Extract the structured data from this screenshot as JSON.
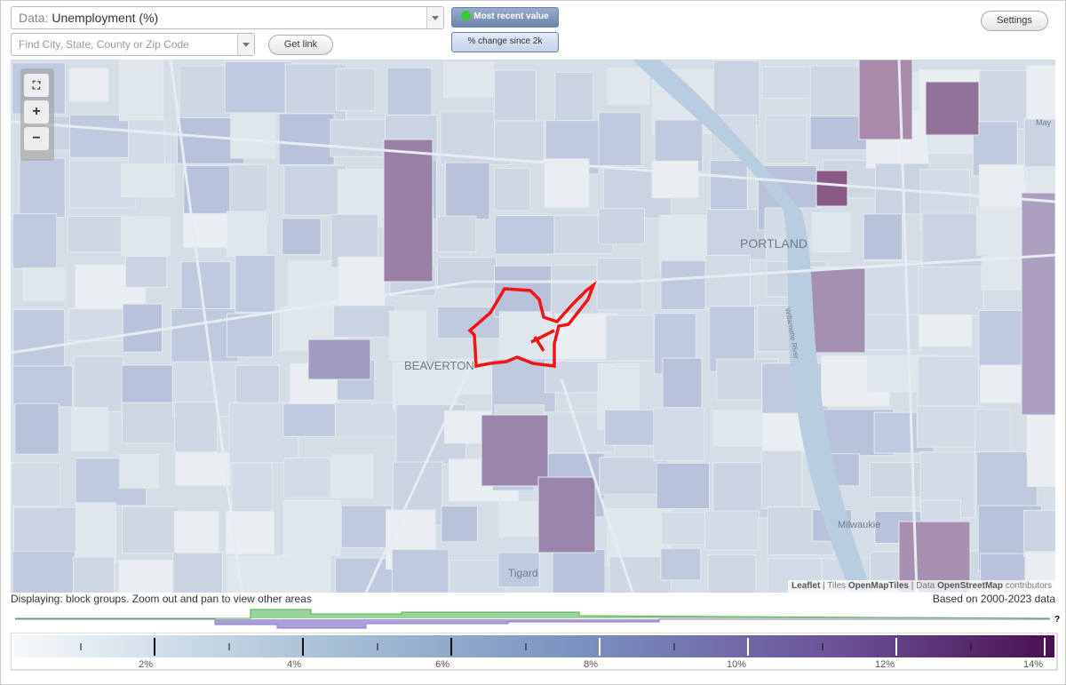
{
  "header": {
    "data_label": "Data:",
    "data_value": "Unemployment (%)",
    "search_placeholder": "Find City, State, County or Zip Code",
    "get_link": "Get link",
    "modes": [
      "Most recent value",
      "% change since 2k"
    ],
    "settings": "Settings"
  },
  "map": {
    "zoom_controls": [
      "+",
      "−"
    ],
    "labels": {
      "portland": "PORTLAND",
      "beaverton": "BEAVERTON",
      "tigard": "Tigard",
      "milwaukie": "Milwaukie",
      "river": "Willamette River",
      "may": "May"
    },
    "attribution": {
      "leaflet": "Leaflet",
      "sep": "|",
      "tiles": "Tiles",
      "tiles_src": "OpenMapTiles",
      "data": "Data",
      "data_src": "OpenStreetMap",
      "contributors": "contributors"
    }
  },
  "footer": {
    "status": "Displaying: block groups. Zoom out and pan to view other areas",
    "data_range": "Based on 2000-2023 data",
    "help": "?"
  },
  "legend": {
    "ticks": [
      "2%",
      "4%",
      "6%",
      "8%",
      "10%",
      "12%",
      "14%"
    ]
  }
}
